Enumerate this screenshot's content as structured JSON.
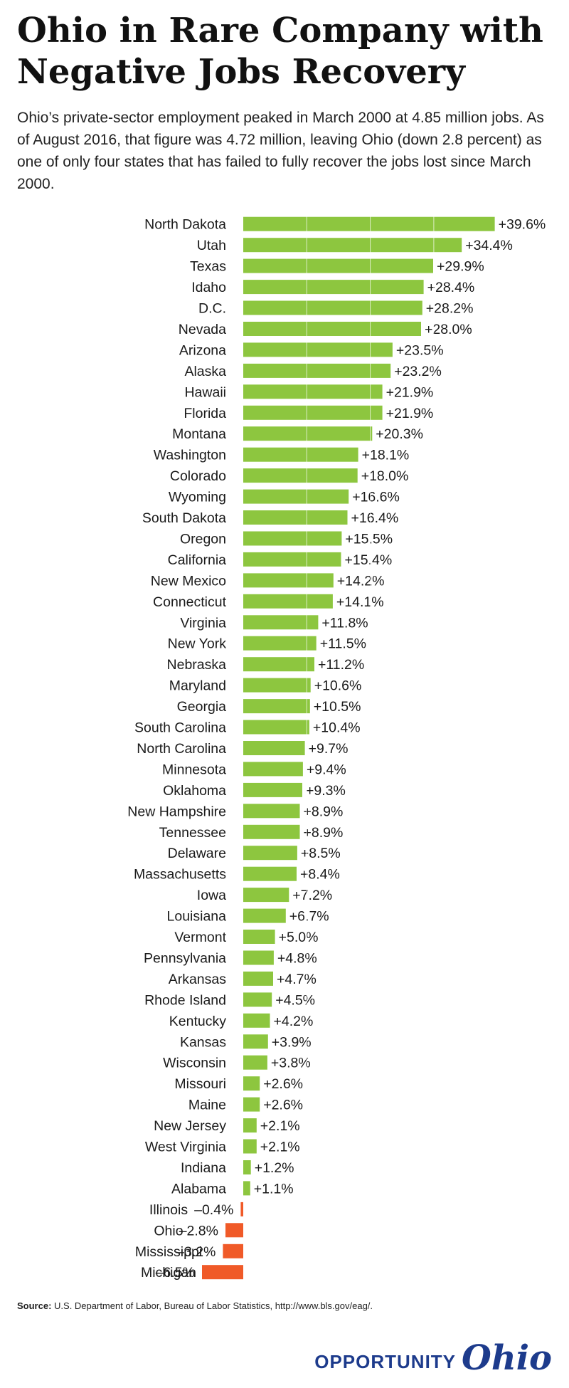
{
  "header": {
    "title": "Ohio in Rare Company with Negative Jobs Recovery",
    "subtitle": "Ohio’s private-sector employment peaked in March 2000 at 4.85 million jobs. As of August 2016, that figure was 4.72 million, leaving Ohio (down 2.8 percent) as one of only four states that has failed to fully recover the jobs lost since March 2000."
  },
  "footer": {
    "source_label": "Source:",
    "source_text": " U.S. Department of Labor, Bureau of Labor Statistics, http://www.bls.gov/eag/.",
    "logo_word": "OPPORTUNITY",
    "logo_script": "Ohio"
  },
  "colors": {
    "positive": "#8dc63f",
    "negative": "#f05a28",
    "logo": "#1d3b8c"
  },
  "chart_data": {
    "type": "bar",
    "orientation": "horizontal",
    "title": "Ohio in Rare Company with Negative Jobs Recovery",
    "unit": "percent change in private-sector employment since March 2000",
    "categories": [
      "North Dakota",
      "Utah",
      "Texas",
      "Idaho",
      "D.C.",
      "Nevada",
      "Arizona",
      "Alaska",
      "Hawaii",
      "Florida",
      "Montana",
      "Washington",
      "Colorado",
      "Wyoming",
      "South Dakota",
      "Oregon",
      "California",
      "New Mexico",
      "Connecticut",
      "Virginia",
      "New York",
      "Nebraska",
      "Maryland",
      "Georgia",
      "South Carolina",
      "North Carolina",
      "Minnesota",
      "Oklahoma",
      "New Hampshire",
      "Tennessee",
      "Delaware",
      "Massachusetts",
      "Iowa",
      "Louisiana",
      "Vermont",
      "Pennsylvania",
      "Arkansas",
      "Rhode Island",
      "Kentucky",
      "Kansas",
      "Wisconsin",
      "Missouri",
      "Maine",
      "New Jersey",
      "West Virginia",
      "Indiana",
      "Alabama",
      "Illinois",
      "Ohio",
      "Mississippi",
      "Michigan"
    ],
    "values": [
      39.6,
      34.4,
      29.9,
      28.4,
      28.2,
      28.0,
      23.5,
      23.2,
      21.9,
      21.9,
      20.3,
      18.1,
      18.0,
      16.6,
      16.4,
      15.5,
      15.4,
      14.2,
      14.1,
      11.8,
      11.5,
      11.2,
      10.6,
      10.5,
      10.4,
      9.7,
      9.4,
      9.3,
      8.9,
      8.9,
      8.5,
      8.4,
      7.2,
      6.7,
      5.0,
      4.8,
      4.7,
      4.5,
      4.2,
      3.9,
      3.8,
      2.6,
      2.6,
      2.1,
      2.1,
      1.2,
      1.1,
      -0.4,
      -2.8,
      -3.2,
      -6.5
    ],
    "labels": [
      "+39.6%",
      "+34.4%",
      "+29.9%",
      "+28.4%",
      "+28.2%",
      "+28.0%",
      "+23.5%",
      "+23.2%",
      "+21.9%",
      "+21.9%",
      "+20.3%",
      "+18.1%",
      "+18.0%",
      "+16.6%",
      "+16.4%",
      "+15.5%",
      "+15.4%",
      "+14.2%",
      "+14.1%",
      "+11.8%",
      "+11.5%",
      "+11.2%",
      "+10.6%",
      "+10.5%",
      "+10.4%",
      "+9.7%",
      "+9.4%",
      "+9.3%",
      "+8.9%",
      "+8.9%",
      "+8.5%",
      "+8.4%",
      "+7.2%",
      "+6.7%",
      "+5.0%",
      "+4.8%",
      "+4.7%",
      "+4.5%",
      "+4.2%",
      "+3.9%",
      "+3.8%",
      "+2.6%",
      "+2.6%",
      "+2.1%",
      "+2.1%",
      "+1.2%",
      "+1.1%",
      "–0.4%",
      "–2.8%",
      "–3.2%",
      "–6.5%"
    ],
    "xlim": [
      -7,
      40
    ],
    "grid": true
  }
}
